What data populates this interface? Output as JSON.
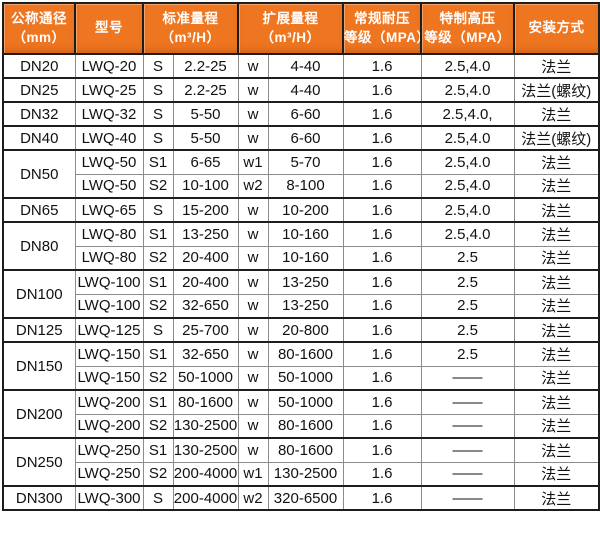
{
  "colors": {
    "header_bg": "#ef7621",
    "header_text": "#ffffff",
    "border_dark": "#1d1d1d",
    "border_light": "#8c8c8c",
    "cell_text": "#111111"
  },
  "table": {
    "headers": [
      {
        "line1": "公称通径",
        "line2": "（mm）"
      },
      {
        "line1": "型号",
        "line2": ""
      },
      {
        "line1": "标准量程",
        "line2": "（m³/H）"
      },
      {
        "line1": "扩展量程",
        "line2": "（m³/H）"
      },
      {
        "line1": "常规耐压",
        "line2": "等级（MPA）"
      },
      {
        "line1": "特制高压",
        "line2": "等级（MPA）"
      },
      {
        "line1": "安装方式",
        "line2": ""
      }
    ]
  },
  "chart_data": {
    "type": "table",
    "columns": [
      "公称通径（mm）",
      "型号",
      "标准量程（m³/H）",
      "扩展量程（m³/H）",
      "常规耐压等级（MPA）",
      "特制高压等级（MPA）",
      "安装方式"
    ],
    "groups": [
      {
        "dn": "DN20",
        "rows": [
          {
            "model": "LWQ-20",
            "s": "S",
            "std": "2.2-25",
            "w": "w",
            "ext": "4-40",
            "normal": "1.6",
            "high": "2.5,4.0",
            "install": "法兰"
          }
        ]
      },
      {
        "dn": "DN25",
        "rows": [
          {
            "model": "LWQ-25",
            "s": "S",
            "std": "2.2-25",
            "w": "w",
            "ext": "4-40",
            "normal": "1.6",
            "high": "2.5,4.0",
            "install": "法兰(螺纹)"
          }
        ]
      },
      {
        "dn": "DN32",
        "rows": [
          {
            "model": "LWQ-32",
            "s": "S",
            "std": "5-50",
            "w": "w",
            "ext": "6-60",
            "normal": "1.6",
            "high": "2.5,4.0,",
            "install": "法兰"
          }
        ]
      },
      {
        "dn": "DN40",
        "rows": [
          {
            "model": "LWQ-40",
            "s": "S",
            "std": "5-50",
            "w": "w",
            "ext": "6-60",
            "normal": "1.6",
            "high": "2.5,4.0",
            "install": "法兰(螺纹)"
          }
        ]
      },
      {
        "dn": "DN50",
        "rows": [
          {
            "model": "LWQ-50",
            "s": "S1",
            "std": "6-65",
            "w": "w1",
            "ext": "5-70",
            "normal": "1.6",
            "high": "2.5,4.0",
            "install": "法兰"
          },
          {
            "model": "LWQ-50",
            "s": "S2",
            "std": "10-100",
            "w": "w2",
            "ext": "8-100",
            "normal": "1.6",
            "high": "2.5,4.0",
            "install": "法兰"
          }
        ]
      },
      {
        "dn": "DN65",
        "rows": [
          {
            "model": "LWQ-65",
            "s": "S",
            "std": "15-200",
            "w": "w",
            "ext": "10-200",
            "normal": "1.6",
            "high": "2.5,4.0",
            "install": "法兰"
          }
        ]
      },
      {
        "dn": "DN80",
        "rows": [
          {
            "model": "LWQ-80",
            "s": "S1",
            "std": "13-250",
            "w": "w",
            "ext": "10-160",
            "normal": "1.6",
            "high": "2.5,4.0",
            "install": "法兰"
          },
          {
            "model": "LWQ-80",
            "s": "S2",
            "std": "20-400",
            "w": "w",
            "ext": "10-160",
            "normal": "1.6",
            "high": "2.5",
            "install": "法兰"
          }
        ]
      },
      {
        "dn": "DN100",
        "rows": [
          {
            "model": "LWQ-100",
            "s": "S1",
            "std": "20-400",
            "w": "w",
            "ext": "13-250",
            "normal": "1.6",
            "high": "2.5",
            "install": "法兰"
          },
          {
            "model": "LWQ-100",
            "s": "S2",
            "std": "32-650",
            "w": "w",
            "ext": "13-250",
            "normal": "1.6",
            "high": "2.5",
            "install": "法兰"
          }
        ]
      },
      {
        "dn": "DN125",
        "rows": [
          {
            "model": "LWQ-125",
            "s": "S",
            "std": "25-700",
            "w": "w",
            "ext": "20-800",
            "normal": "1.6",
            "high": "2.5",
            "install": "法兰"
          }
        ]
      },
      {
        "dn": "DN150",
        "rows": [
          {
            "model": "LWQ-150",
            "s": "S1",
            "std": "32-650",
            "w": "w",
            "ext": "80-1600",
            "normal": "1.6",
            "high": "2.5",
            "install": "法兰"
          },
          {
            "model": "LWQ-150",
            "s": "S2",
            "std": "50-1000",
            "w": "w",
            "ext": "50-1000",
            "normal": "1.6",
            "high": "——",
            "install": "法兰"
          }
        ]
      },
      {
        "dn": "DN200",
        "rows": [
          {
            "model": "LWQ-200",
            "s": "S1",
            "std": "80-1600",
            "w": "w",
            "ext": "50-1000",
            "normal": "1.6",
            "high": "——",
            "install": "法兰"
          },
          {
            "model": "LWQ-200",
            "s": "S2",
            "std": "130-2500",
            "w": "w",
            "ext": "80-1600",
            "normal": "1.6",
            "high": "——",
            "install": "法兰"
          }
        ]
      },
      {
        "dn": "DN250",
        "rows": [
          {
            "model": "LWQ-250",
            "s": "S1",
            "std": "130-2500",
            "w": "w",
            "ext": "80-1600",
            "normal": "1.6",
            "high": "——",
            "install": "法兰"
          },
          {
            "model": "LWQ-250",
            "s": "S2",
            "std": "200-4000",
            "w": "w1",
            "ext": "130-2500",
            "normal": "1.6",
            "high": "——",
            "install": "法兰"
          }
        ]
      },
      {
        "dn": "DN300",
        "rows": [
          {
            "model": "LWQ-300",
            "s": "S",
            "std": "200-4000",
            "w": "w2",
            "ext": "320-6500",
            "normal": "1.6",
            "high": "——",
            "install": "法兰"
          }
        ]
      }
    ]
  }
}
